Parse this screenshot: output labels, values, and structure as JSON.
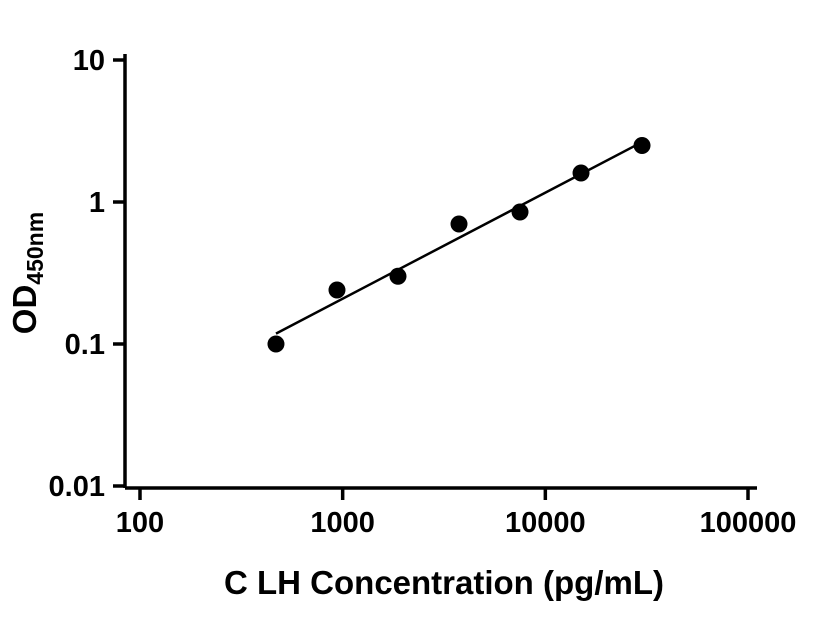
{
  "chart_data": {
    "type": "scatter",
    "title": "",
    "xlabel": "C LH Concentration (pg/mL)",
    "ylabel_main": "OD",
    "ylabel_sub": "450nm",
    "x_scale": "log10",
    "y_scale": "log10",
    "xlim": [
      100,
      100000
    ],
    "ylim": [
      0.01,
      10
    ],
    "x_ticks": [
      100,
      1000,
      10000,
      100000
    ],
    "x_tick_labels": [
      "100",
      "1000",
      "10000",
      "100000"
    ],
    "y_ticks": [
      10,
      1,
      0.1,
      0.01
    ],
    "y_tick_labels": [
      "10",
      "1",
      "0.1",
      "0.01"
    ],
    "grid": false,
    "legend": false,
    "background_color": "#ffffff",
    "axis_color": "#000000",
    "series": [
      {
        "name": "standard-points",
        "type": "scatter",
        "marker": "filled-circle",
        "color": "#000000",
        "x": [
          468.75,
          937.5,
          1875,
          3750,
          7500,
          15000,
          30000
        ],
        "y": [
          0.1,
          0.24,
          0.3,
          0.7,
          0.85,
          1.6,
          2.5
        ]
      },
      {
        "name": "fit-line",
        "type": "line",
        "fit": "linear-log-log",
        "color": "#000000"
      }
    ]
  }
}
